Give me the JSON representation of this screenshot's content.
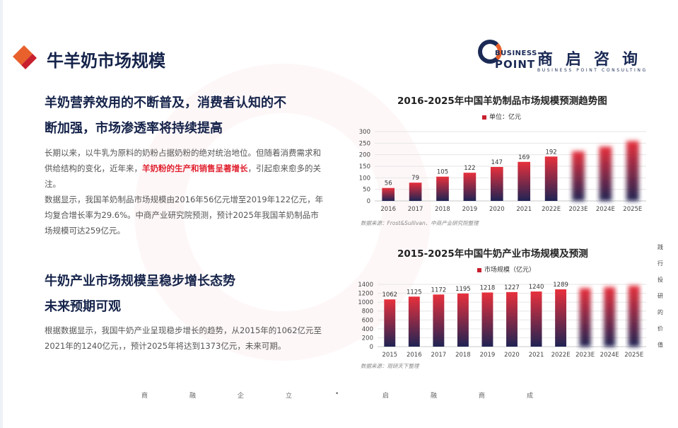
{
  "page": {
    "title": "牛羊奶市场规模"
  },
  "logo": {
    "en_line1": "BUSINESS",
    "en_line2": "POINT",
    "cn": "商启咨询",
    "subtitle": "BUSINESS POINT CONSULTING"
  },
  "section1": {
    "heading_line1": "羊奶营养效用的不断普及，消费者认知的不",
    "heading_line2": "断加强，市场渗透率将持续提高",
    "p1_before": "长期以来，以牛乳为原料的奶粉占据奶粉的绝对统治地位。但随着消费需求和供给结构的变化，近年来，",
    "p1_highlight": "羊奶粉的生产和销售呈著增长",
    "p1_after": "，引起愈来愈多的关注。",
    "p2": "数据显示，我国羊奶制品市场规模由2016年56亿元增至2019年122亿元，年均复合增长率为29.6%。中商产业研究院预测，预计2025年我国羊奶制品市场规模可达259亿元。"
  },
  "section2": {
    "heading_line1": "牛奶产业市场规模呈稳步增长态势",
    "heading_line2": "未来预期可观",
    "p1": "根据数据显示，我国牛奶产业呈现稳步增长的趋势，从2015年的1062亿元至2021年的1240亿元，，预计2025年将达到1373亿元，未来可期。"
  },
  "colors": {
    "bar_top": "#e8303c",
    "bar_bottom": "#1f2454",
    "title_navy": "#15234a",
    "highlight_red": "#e0202e"
  },
  "chart_data": [
    {
      "type": "bar",
      "title": "2016-2025年中国羊奶制品市场规模预测趋势图",
      "legend": "单位：亿元",
      "categories": [
        "2016",
        "2017",
        "2018",
        "2019",
        "2020",
        "2021",
        "2022E",
        "2023E",
        "2024E",
        "2025E"
      ],
      "values": [
        56,
        79,
        105,
        122,
        147,
        169,
        192,
        215,
        235,
        259
      ],
      "data_labels": [
        "56",
        "79",
        "105",
        "122",
        "147",
        "169",
        "192",
        "",
        "",
        ""
      ],
      "blurred_from_index": 7,
      "ylim": [
        0,
        300
      ],
      "yticks": [
        "0",
        "50",
        "100",
        "150",
        "200",
        "250",
        "300"
      ],
      "grid": true,
      "source": "数据来源：Frost&Sullivan、中商产业研究院整理"
    },
    {
      "type": "bar",
      "title": "2015-2025年中国牛奶产业市场规模及预测",
      "legend": "市场规模（亿元）",
      "categories": [
        "2015",
        "2016",
        "2017",
        "2018",
        "2019",
        "2020",
        "2021",
        "2022E",
        "2023E",
        "2024E",
        "2025E"
      ],
      "values": [
        1062,
        1125,
        1172,
        1195,
        1218,
        1227,
        1240,
        1289,
        1315,
        1340,
        1373
      ],
      "data_labels": [
        "1062",
        "1125",
        "1172",
        "1195",
        "1218",
        "1227",
        "1240",
        "1289",
        "",
        "",
        ""
      ],
      "blurred_from_index": 8,
      "ylim": [
        0,
        1400
      ],
      "yticks": [
        "0",
        "200",
        "400",
        "600",
        "800",
        "1000",
        "1200",
        "1400"
      ],
      "grid": true,
      "source": "数据来源：观研天下整理"
    }
  ],
  "side_text": [
    "践",
    "行",
    "投",
    "研",
    "的",
    "价",
    "值"
  ],
  "footer": [
    "商",
    "融",
    "企",
    "立",
    "•",
    "启",
    "融",
    "商",
    "成"
  ]
}
